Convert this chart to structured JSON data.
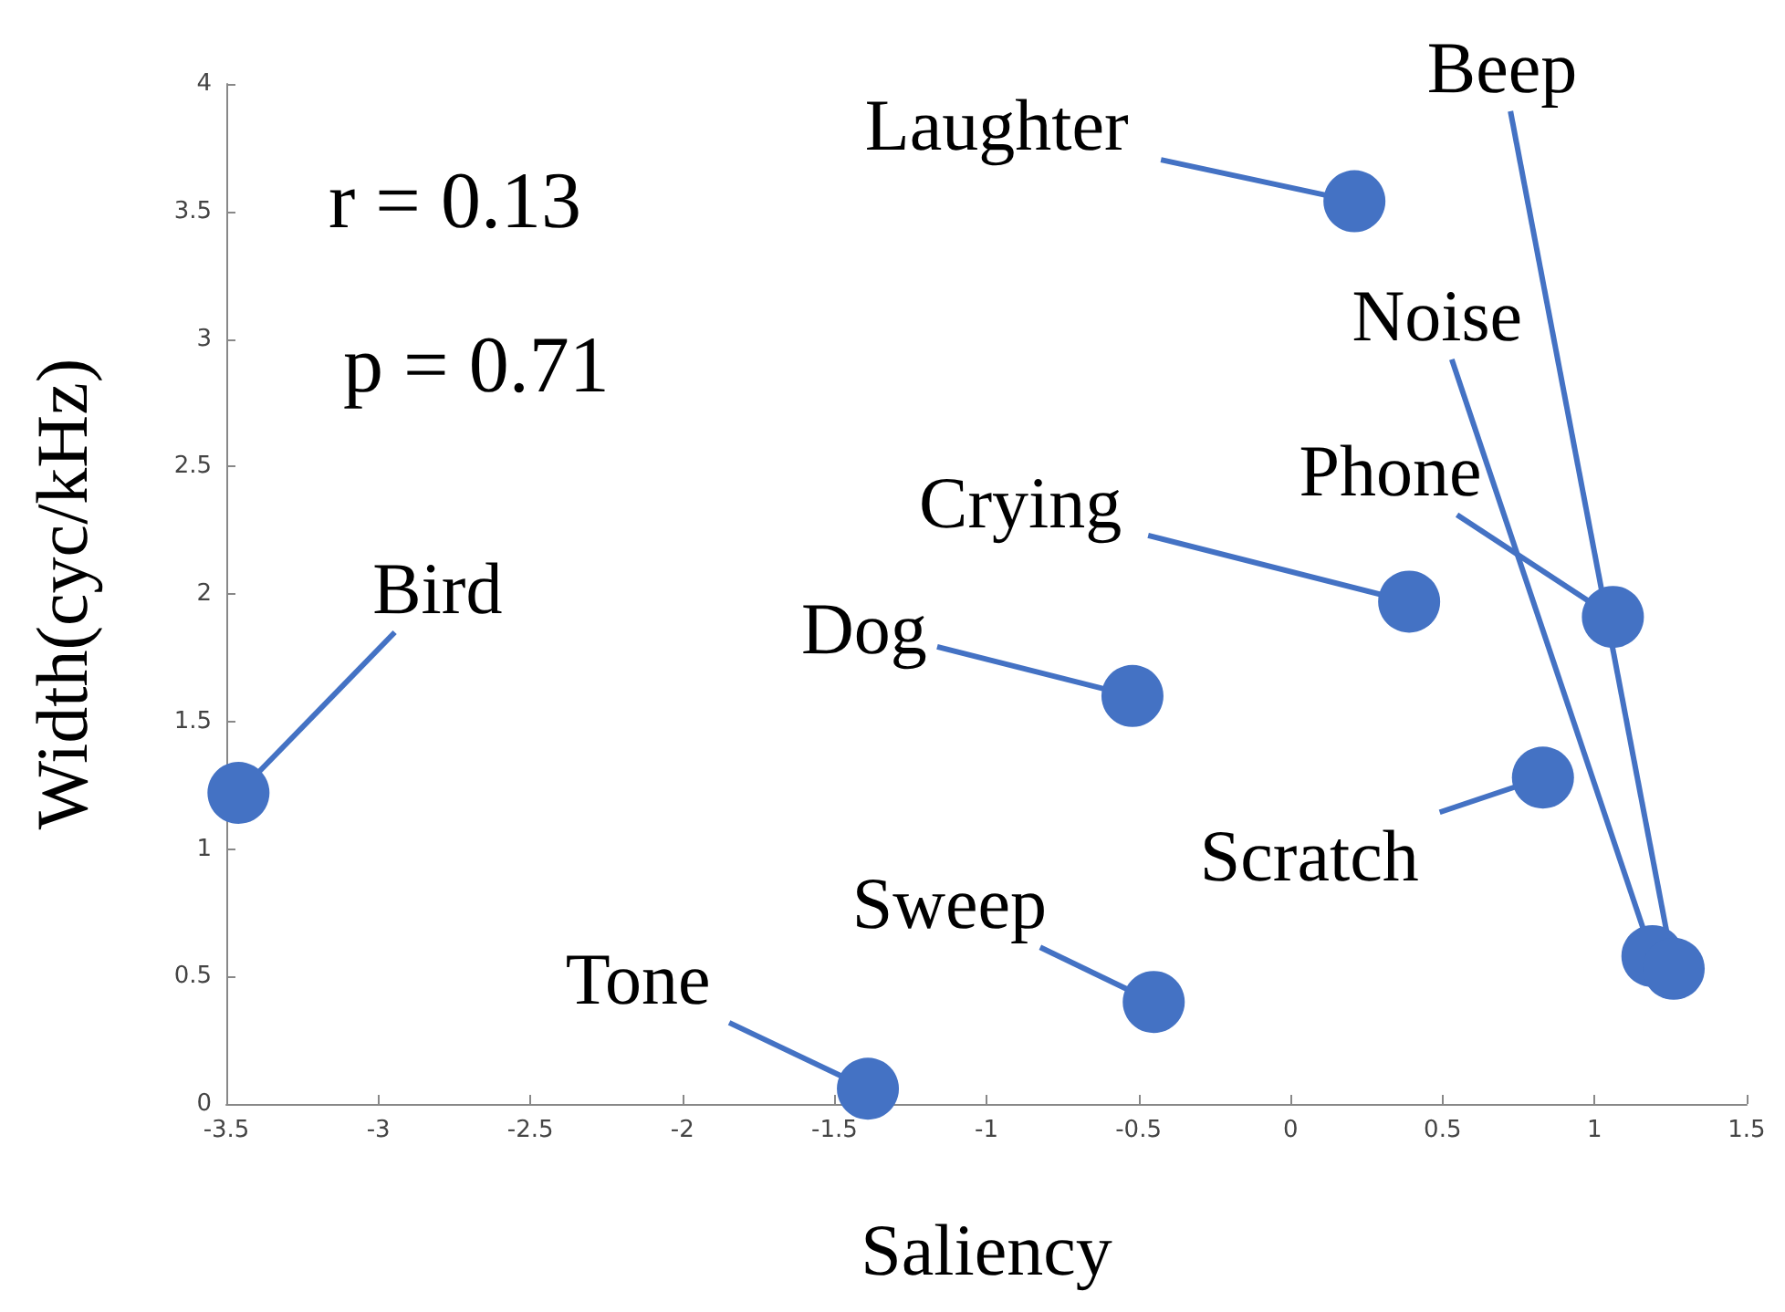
{
  "chart_data": {
    "type": "scatter",
    "xlabel": "Saliency",
    "ylabel": "Width(cyc/kHz)",
    "x": [
      -3.46,
      -1.39,
      -0.45,
      -0.52,
      0.39,
      0.21,
      0.83,
      1.06,
      1.19,
      1.26
    ],
    "values": [
      1.22,
      0.06,
      0.4,
      1.6,
      1.97,
      3.54,
      1.28,
      1.91,
      0.58,
      0.53
    ],
    "color": "#4472c4",
    "marker": "circle",
    "grid": false,
    "xlim": [
      -3.5,
      1.5
    ],
    "xticks": [
      -3.5,
      -3,
      -2.5,
      -2,
      -1.5,
      -1,
      -0.5,
      0,
      0.5,
      1,
      1.5
    ],
    "ylim": [
      0,
      4
    ],
    "yticks": [
      0,
      0.5,
      1,
      1.5,
      2,
      2.5,
      3,
      3.5,
      4
    ],
    "annotations": [
      {
        "text": "Bird",
        "x": -3.46,
        "y": 1.22
      },
      {
        "text": "Tone",
        "x": -1.39,
        "y": 0.06
      },
      {
        "text": "Sweep",
        "x": -0.45,
        "y": 0.4
      },
      {
        "text": "Dog",
        "x": -0.52,
        "y": 1.6
      },
      {
        "text": "Crying",
        "x": 0.39,
        "y": 1.97
      },
      {
        "text": "Laughter",
        "x": 0.21,
        "y": 3.54
      },
      {
        "text": "Scratch",
        "x": 0.83,
        "y": 1.28
      },
      {
        "text": "Phone",
        "x": 1.06,
        "y": 1.91
      },
      {
        "text": "Noise",
        "x": 1.19,
        "y": 0.58
      },
      {
        "text": "Beep",
        "x": 1.26,
        "y": 0.53
      },
      "r = 0.13",
      "p = 0.71"
    ]
  }
}
